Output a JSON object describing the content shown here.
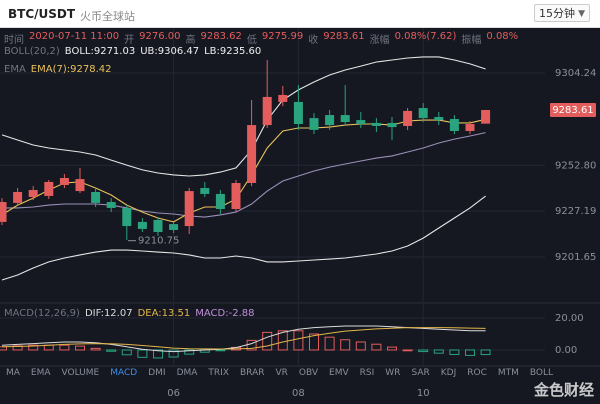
{
  "header": {
    "title": "BTC/USDT",
    "exchange": "火币全球站",
    "interval": "15分钟"
  },
  "info": [
    {
      "label": "时间",
      "value": "2020-07-11 11:00"
    },
    {
      "label": "开",
      "value": "9276.00"
    },
    {
      "label": "高",
      "value": "9283.62"
    },
    {
      "label": "低",
      "value": "9275.99"
    },
    {
      "label": "收",
      "value": "9283.61"
    },
    {
      "label": "涨幅",
      "value": "0.08%(7.62)"
    },
    {
      "label": "振幅",
      "value": "0.08%"
    }
  ],
  "toolbar": {
    "tabs": [
      "MA",
      "EMA",
      "VOLUME",
      "MACD",
      "DMI",
      "DMA",
      "TRIX",
      "BRAR",
      "VR",
      "OBV",
      "EMV",
      "RSI",
      "WR",
      "SAR",
      "KDJ",
      "ROC",
      "MTM",
      "BOLL"
    ],
    "active": "MACD"
  },
  "watermark": "金色财经",
  "chart_data": [
    {
      "type": "candlestick",
      "categories": [
        null,
        null,
        null,
        null,
        null,
        null,
        null,
        null,
        null,
        null,
        null,
        "06",
        null,
        null,
        null,
        null,
        null,
        null,
        null,
        "08",
        null,
        null,
        null,
        null,
        null,
        null,
        null,
        "10",
        null,
        null,
        null,
        null
      ],
      "legend": [
        {
          "label": "BOLL(20,2)",
          "entries": [
            "BOLL:9271.03",
            "UB:9306.47",
            "LB:9235.60"
          ]
        },
        {
          "label": "EMA",
          "entries": [
            "EMA(7):9278.42"
          ]
        }
      ],
      "open": [
        9221.2,
        9231.8,
        9235.1,
        9235.7,
        9241.8,
        9238.4,
        9237.9,
        9232.3,
        9229.0,
        9221.2,
        9222.3,
        9220.0,
        9218.9,
        9240.1,
        9236.8,
        9228.4,
        9242.9,
        9275.2,
        9288.1,
        9288.1,
        9279.1,
        9280.8,
        9280.8,
        9278.0,
        9276.4,
        9276.4,
        9274.7,
        9284.7,
        9279.7,
        9278.6,
        9271.9,
        9276.0
      ],
      "high": [
        9234.5,
        9240.1,
        9241.2,
        9244.6,
        9247.9,
        9251.3,
        9240.1,
        9234.5,
        9230.6,
        9223.4,
        9223.9,
        9221.2,
        9240.1,
        9243.5,
        9239.0,
        9244.6,
        9289.2,
        9311.5,
        9297.0,
        9297.5,
        9281.9,
        9283.6,
        9297.5,
        9282.5,
        9279.1,
        9279.7,
        9284.7,
        9287.5,
        9282.5,
        9280.8,
        9277.5,
        9283.62
      ],
      "low": [
        9219.5,
        9230.1,
        9233.4,
        9234.0,
        9240.1,
        9237.3,
        9229.5,
        9226.7,
        9211.1,
        9215.6,
        9213.4,
        9215.0,
        9214.5,
        9235.1,
        9225.6,
        9226.7,
        9241.2,
        9273.6,
        9285.8,
        9272.5,
        9270.2,
        9272.5,
        9274.7,
        9273.6,
        9271.3,
        9266.9,
        9272.5,
        9276.9,
        9275.2,
        9270.2,
        9270.2,
        9275.99
      ],
      "close": [
        9232.3,
        9237.9,
        9239.0,
        9243.5,
        9245.7,
        9245.1,
        9231.8,
        9229.0,
        9218.9,
        9217.3,
        9215.6,
        9216.7,
        9238.4,
        9236.8,
        9228.4,
        9242.9,
        9275.2,
        9290.9,
        9292.0,
        9275.8,
        9272.5,
        9275.2,
        9276.9,
        9275.8,
        9274.7,
        9274.1,
        9283.1,
        9279.1,
        9278.0,
        9271.9,
        9275.8,
        9283.61
      ],
      "up_color": "#e35d5d",
      "down_color": "#2aa37f",
      "series": [
        {
          "color": "#e6e6e6",
          "values": [
            9269.7,
            9266.9,
            9264.1,
            9262.4,
            9261.3,
            9260.2,
            9258.5,
            9255.7,
            9252.9,
            9250.2,
            9248.5,
            9247.4,
            9246.8,
            9247.4,
            9249.0,
            9251.3,
            9261.3,
            9278.0,
            9289.2,
            9294.8,
            9299.2,
            9303.1,
            9305.9,
            9308.1,
            9310.4,
            9311.5,
            9312.6,
            9313.2,
            9313.2,
            9311.5,
            9309.3,
            9306.47
          ]
        },
        {
          "color": "#9a8fb8",
          "values": [
            9229.0,
            9229.0,
            9229.5,
            9230.6,
            9231.2,
            9231.2,
            9231.2,
            9230.6,
            9229.0,
            9227.3,
            9226.2,
            9225.6,
            9224.5,
            9223.9,
            9225.1,
            9226.7,
            9231.2,
            9238.4,
            9244.0,
            9246.8,
            9249.6,
            9251.8,
            9253.5,
            9255.2,
            9256.8,
            9258.0,
            9260.2,
            9262.4,
            9265.2,
            9267.4,
            9269.1,
            9271.03
          ]
        },
        {
          "color": "#e6e6e6",
          "values": [
            9188.8,
            9191.6,
            9195.5,
            9198.9,
            9201.1,
            9202.8,
            9204.4,
            9205.5,
            9205.5,
            9205.0,
            9204.4,
            9203.9,
            9202.8,
            9201.1,
            9201.1,
            9202.2,
            9201.1,
            9198.9,
            9198.9,
            9199.4,
            9200.0,
            9200.5,
            9201.1,
            9202.2,
            9203.3,
            9205.0,
            9207.8,
            9212.2,
            9217.8,
            9223.4,
            9229.0,
            9235.6
          ]
        },
        {
          "color": "#e8c15a",
          "values": [
            9225.1,
            9230.6,
            9234.5,
            9239.0,
            9242.9,
            9243.5,
            9240.1,
            9236.2,
            9230.6,
            9226.7,
            9223.4,
            9221.2,
            9226.2,
            9229.5,
            9229.5,
            9234.0,
            9247.4,
            9262.4,
            9271.9,
            9273.6,
            9273.6,
            9274.1,
            9275.2,
            9275.8,
            9275.8,
            9275.2,
            9277.5,
            9278.0,
            9278.0,
            9276.4,
            9276.4,
            9278.42
          ]
        }
      ],
      "annotations": [
        {
          "text": "9210.75",
          "value": 9210.75
        }
      ],
      "price_tag": "9283.61",
      "ylim": [
        9177.67,
        9320.41
      ],
      "yticks": [
        9201.65,
        9227.19,
        {
          "value": 9252.8,
          "label": "9252.80"
        },
        9304.24
      ],
      "grid": true
    },
    {
      "type": "macd",
      "label": "MACD(12,26,9)",
      "legend": [
        {
          "label": "DIF:12.07",
          "color": "#dcdcdc"
        },
        {
          "label": "DEA:13.51",
          "color": "#e4b54a"
        },
        {
          "label": "MACD:-2.88",
          "color": "#c08fd8"
        }
      ],
      "series": [
        {
          "color": "#dcdcdc",
          "values": [
            3,
            3.5,
            4,
            4.5,
            5,
            5,
            4.5,
            3.5,
            2,
            0.5,
            -0.5,
            -1,
            -0.5,
            0,
            0.5,
            1.5,
            4,
            8,
            11,
            13,
            14,
            14.5,
            15,
            15,
            15,
            14.5,
            14,
            13.5,
            13,
            12.5,
            12,
            12.07
          ]
        },
        {
          "color": "#e4b54a",
          "values": [
            2,
            2.2,
            2.5,
            3,
            3.5,
            3.8,
            4,
            3.9,
            3.5,
            2.8,
            2,
            1.2,
            0.8,
            0.7,
            0.6,
            0.7,
            1,
            2.5,
            5,
            7,
            9,
            10.5,
            11.8,
            12.5,
            13.2,
            13.6,
            14,
            14,
            14,
            13.9,
            13.7,
            13.51
          ]
        }
      ],
      "values": [
        2,
        2.6,
        3,
        3,
        3,
        2.4,
        1,
        -0.8,
        -3,
        -4.6,
        -5,
        -4.4,
        -2.6,
        -1.4,
        -0.2,
        1.6,
        6,
        11,
        12,
        12,
        10,
        8,
        6.4,
        5,
        3.6,
        1.8,
        0,
        -1,
        -2,
        -2.8,
        -3.4,
        -2.88
      ],
      "up_color": "#e35d5d",
      "down_color": "#2aa37f",
      "ylim": [
        -9.4,
        27.5
      ],
      "yticks": [
        {
          "value": 0,
          "label": "0.00"
        },
        {
          "value": 20,
          "label": "20.00"
        }
      ],
      "grid": true
    }
  ]
}
